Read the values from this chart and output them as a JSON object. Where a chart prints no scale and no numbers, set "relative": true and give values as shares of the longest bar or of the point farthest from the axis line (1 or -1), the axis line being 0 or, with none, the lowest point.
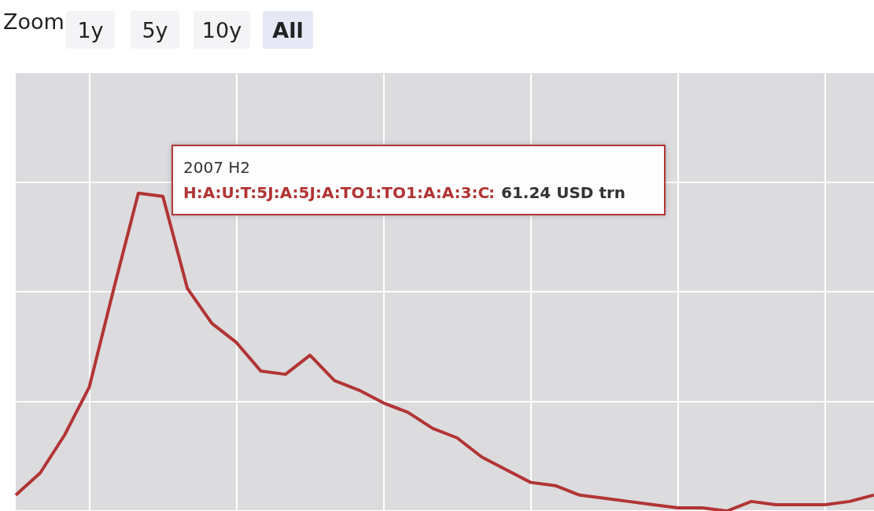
{
  "chart_data": {
    "type": "line",
    "relative": true,
    "grid": true,
    "categories": [
      null,
      null,
      null,
      null,
      null,
      null,
      null,
      null,
      null,
      null,
      null,
      null,
      null,
      null,
      null,
      null,
      null,
      null,
      null,
      null,
      null,
      null,
      null,
      null,
      null,
      null,
      null,
      null,
      null,
      null,
      null,
      null,
      null,
      null,
      null,
      null
    ],
    "series": [
      {
        "name": "H:A:U:T:5J:A:5J:A:TO1:TO1:A:A:3:C",
        "color": "#b23434",
        "values": [
          0.05,
          0.12,
          0.24,
          0.39,
          0.7,
          1.0,
          0.99,
          0.7,
          0.59,
          0.53,
          0.44,
          0.43,
          0.49,
          0.41,
          0.38,
          0.34,
          0.31,
          0.26,
          0.23,
          0.17,
          0.13,
          0.09,
          0.08,
          0.05,
          0.04,
          0.03,
          0.02,
          0.01,
          0.01,
          0,
          0.03,
          0.02,
          0.02,
          0.02,
          0.03,
          0.05
        ]
      }
    ],
    "annotations": [
      "Zoom",
      "1y",
      "5y",
      "10y",
      "All",
      "2007 H2",
      ":",
      "61.24 USD trn"
    ]
  }
}
